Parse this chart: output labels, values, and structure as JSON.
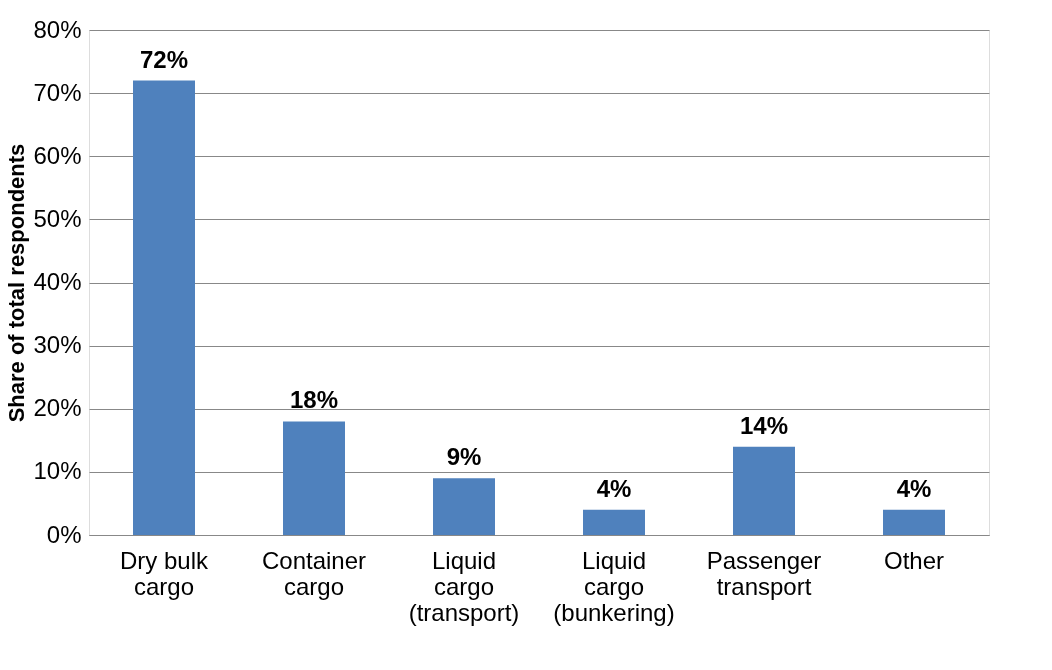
{
  "chart_data": {
    "type": "bar",
    "ylabel": "Share of total respondents",
    "categories": [
      "Dry bulk cargo",
      "Container cargo",
      "Liquid cargo (transport)",
      "Liquid cargo (bunkering)",
      "Passenger transport",
      "Other"
    ],
    "values": [
      72,
      18,
      9,
      4,
      14,
      4
    ],
    "value_labels": [
      "72%",
      "18%",
      "9%",
      "4%",
      "14%",
      "4%"
    ],
    "color": "#4f81bd",
    "ylim": [
      0,
      80
    ],
    "yticks": [
      {
        "value": 0,
        "label": "0%"
      },
      {
        "value": 10,
        "label": "10%"
      },
      {
        "value": 20,
        "label": "20%"
      },
      {
        "value": 30,
        "label": "30%"
      },
      {
        "value": 40,
        "label": "40%"
      },
      {
        "value": 50,
        "label": "50%"
      },
      {
        "value": 60,
        "label": "60%"
      },
      {
        "value": 70,
        "label": "70%"
      },
      {
        "value": 80,
        "label": "80%"
      }
    ],
    "grid": "y"
  }
}
